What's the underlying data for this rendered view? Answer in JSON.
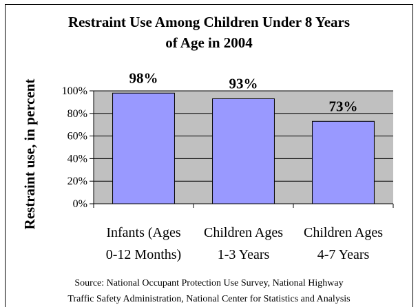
{
  "chart_data": {
    "type": "bar",
    "title_lines": [
      "Restraint Use Among Children Under 8 Years",
      "of Age in 2004"
    ],
    "ylabel": "Restraint use, in percent",
    "categories": [
      [
        "Infants (Ages",
        "0-12 Months)"
      ],
      [
        "Children Ages",
        "1-3 Years"
      ],
      [
        "Children Ages",
        "4-7 Years"
      ]
    ],
    "values": [
      98,
      93,
      73
    ],
    "data_labels": [
      "98%",
      "93%",
      "73%"
    ],
    "ylim": [
      0,
      100
    ],
    "yticks": [
      0,
      20,
      40,
      60,
      80,
      100
    ],
    "ytick_labels": [
      "0%",
      "20%",
      "40%",
      "60%",
      "80%",
      "100%"
    ],
    "grid": true,
    "colors": {
      "bar": "#9999ff",
      "plot_bg": "#c0c0c0",
      "bar_edge": "#000000"
    }
  },
  "source_lines": [
    "Source: National Occupant Protection Use Survey, National Highway",
    "Traffic Safety Administration, National Center for Statistics and Analysis"
  ]
}
